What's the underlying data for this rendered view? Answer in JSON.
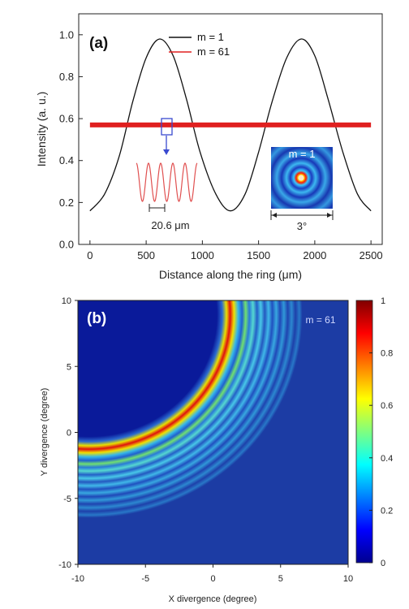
{
  "chart_data": [
    {
      "type": "line",
      "panel_label": "(a)",
      "xlabel": "Distance along the ring (μm)",
      "ylabel": "Intensity (a. u.)",
      "xlim": [
        -100,
        2600
      ],
      "ylim": [
        0.0,
        1.1
      ],
      "x_ticks": [
        0,
        500,
        1000,
        1500,
        2000,
        2500
      ],
      "y_ticks": [
        "0.0",
        "0.2",
        "0.4",
        "0.6",
        "0.8",
        "1.0"
      ],
      "legend_position": "top-right",
      "series": [
        {
          "name": "m = 1",
          "color": "#111111",
          "description_values": {
            "x": [
              0,
              130,
              260,
              380,
              500,
              620,
              740,
              860,
              980,
              1120,
              1250,
              1380,
              1500,
              1620,
              1750,
              1880,
              2000,
              2120,
              2250,
              2380,
              2500
            ],
            "y": [
              0.16,
              0.24,
              0.42,
              0.68,
              0.89,
              0.98,
              0.9,
              0.69,
              0.44,
              0.24,
              0.16,
              0.24,
              0.44,
              0.68,
              0.89,
              0.98,
              0.9,
              0.69,
              0.44,
              0.24,
              0.16
            ]
          }
        },
        {
          "name": "m = 61",
          "color": "#dd2222",
          "mean_value": 0.57,
          "x_range": [
            0,
            2500
          ]
        }
      ],
      "inset_zoom": {
        "period_label": "20.6 μm"
      },
      "inset_image": {
        "label": "m = 1",
        "scale_label": "3°"
      }
    },
    {
      "type": "heatmap",
      "panel_label": "(b)",
      "annotation": "m = 61",
      "xlabel": "X divergence (degree)",
      "ylabel": "Y divergence (degree)",
      "xlim": [
        -10,
        10
      ],
      "ylim": [
        -10,
        10
      ],
      "x_ticks": [
        "-10",
        "-5",
        "0",
        "5",
        "10"
      ],
      "y_ticks": [
        "10",
        "5",
        "0",
        "-5",
        "-10"
      ],
      "ring_radius_deg": 7.0,
      "colorbar": {
        "range": [
          0,
          1
        ],
        "ticks": [
          "1",
          "0.8",
          "0.6",
          "0.4",
          "0.2",
          "0"
        ]
      }
    }
  ]
}
